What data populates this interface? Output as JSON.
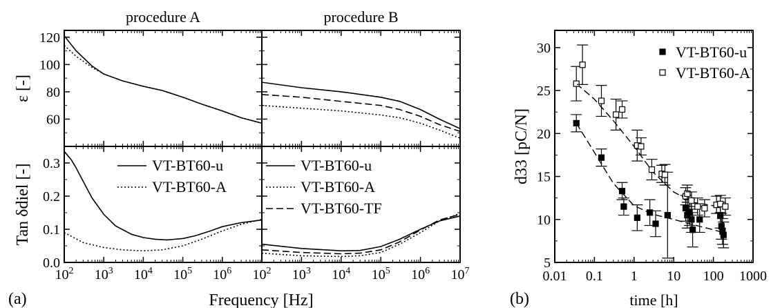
{
  "panel_labels": {
    "a": "(a)",
    "b": "(b)"
  },
  "shared_xlabel": "Frequency [Hz]",
  "chart_data": [
    {
      "id": "eps-A",
      "type": "line",
      "title": "procedure A",
      "ylabel": "ε [-]",
      "xscale": "log",
      "xlim": [
        100,
        10000000
      ],
      "ylim": [
        40,
        125
      ],
      "yticks": [
        60,
        80,
        100,
        120
      ],
      "xticks": [
        "10^2",
        "10^3",
        "10^4",
        "10^5",
        "10^6",
        "10^7"
      ],
      "series": [
        {
          "name": "VT-BT60-u",
          "style": "solid",
          "x": [
            100,
            200,
            500,
            1000,
            3000,
            10000,
            30000,
            100000,
            300000,
            1000000,
            3000000,
            10000000
          ],
          "y": [
            121,
            110,
            99,
            93,
            88,
            84,
            81,
            76,
            71,
            66,
            61,
            57
          ]
        },
        {
          "name": "VT-BT60-A",
          "style": "dotted",
          "x": [
            100,
            200,
            500,
            1000,
            3000,
            10000,
            30000,
            100000,
            300000,
            1000000,
            3000000,
            10000000
          ],
          "y": [
            114,
            106,
            98,
            93,
            88,
            84,
            81,
            76,
            71,
            66,
            61,
            57
          ]
        }
      ]
    },
    {
      "id": "eps-B",
      "type": "line",
      "title": "procedure B",
      "xscale": "log",
      "xlim": [
        100,
        10000000
      ],
      "ylim": [
        40,
        125
      ],
      "yticks": [
        60,
        80,
        100,
        120
      ],
      "xticks": [
        "10^2",
        "10^3",
        "10^4",
        "10^5",
        "10^6",
        "10^7"
      ],
      "series": [
        {
          "name": "VT-BT60-u",
          "style": "solid",
          "x": [
            100,
            1000,
            10000,
            100000,
            300000,
            1000000,
            3000000,
            10000000
          ],
          "y": [
            87,
            83,
            80,
            76,
            73,
            67,
            60,
            53
          ]
        },
        {
          "name": "VT-BT60-TF",
          "style": "dashed",
          "x": [
            100,
            1000,
            10000,
            100000,
            300000,
            1000000,
            3000000,
            10000000
          ],
          "y": [
            78,
            76,
            73,
            70,
            67,
            62,
            56,
            51
          ]
        },
        {
          "name": "VT-BT60-A",
          "style": "dotted",
          "x": [
            100,
            1000,
            10000,
            100000,
            300000,
            1000000,
            3000000,
            10000000
          ],
          "y": [
            70,
            68,
            66,
            63,
            61,
            57,
            52,
            46
          ]
        }
      ]
    },
    {
      "id": "tan-A",
      "type": "line",
      "ylabel": "Tan δdiel [-]",
      "xscale": "log",
      "xlim": [
        100,
        10000000
      ],
      "ylim": [
        0.0,
        0.35
      ],
      "yticks": [
        0.0,
        0.1,
        0.2,
        0.3
      ],
      "ytick_labels": [
        "0.0",
        "0.1",
        "0.2",
        "0.3"
      ],
      "xticks": [
        "10^2",
        "10^3",
        "10^4",
        "10^5",
        "10^6",
        "10^7"
      ],
      "legend": "upper-right",
      "series": [
        {
          "name": "VT-BT60-u",
          "style": "solid",
          "x": [
            100,
            150,
            200,
            300,
            500,
            1000,
            2000,
            5000,
            10000,
            20000,
            40000,
            100000,
            200000,
            500000,
            1000000,
            3000000,
            10000000
          ],
          "y": [
            0.335,
            0.31,
            0.285,
            0.245,
            0.195,
            0.145,
            0.11,
            0.085,
            0.075,
            0.07,
            0.068,
            0.072,
            0.08,
            0.095,
            0.108,
            0.12,
            0.128
          ]
        },
        {
          "name": "VT-BT60-A",
          "style": "dotted",
          "x": [
            100,
            300,
            1000,
            3000,
            10000,
            30000,
            100000,
            300000,
            1000000,
            3000000,
            10000000
          ],
          "y": [
            0.09,
            0.06,
            0.045,
            0.038,
            0.035,
            0.038,
            0.05,
            0.07,
            0.095,
            0.115,
            0.13
          ]
        }
      ]
    },
    {
      "id": "tan-B",
      "type": "line",
      "xscale": "log",
      "xlim": [
        100,
        10000000
      ],
      "ylim": [
        0.0,
        0.35
      ],
      "yticks": [
        0.0,
        0.1,
        0.2,
        0.3
      ],
      "xticks": [
        "10^2",
        "10^3",
        "10^4",
        "10^5",
        "10^6",
        "10^7"
      ],
      "legend": "upper-right",
      "series": [
        {
          "name": "VT-BT60-u",
          "style": "solid",
          "x": [
            100,
            1000,
            10000,
            30000,
            100000,
            300000,
            1000000,
            3000000,
            10000000
          ],
          "y": [
            0.055,
            0.042,
            0.035,
            0.036,
            0.048,
            0.07,
            0.1,
            0.125,
            0.14
          ]
        },
        {
          "name": "VT-BT60-A",
          "style": "dotted",
          "x": [
            100,
            1000,
            10000,
            30000,
            100000,
            300000,
            1000000,
            3000000,
            10000000
          ],
          "y": [
            0.028,
            0.02,
            0.018,
            0.02,
            0.03,
            0.055,
            0.09,
            0.125,
            0.148
          ]
        },
        {
          "name": "VT-BT60-TF",
          "style": "dashed",
          "x": [
            100,
            1000,
            10000,
            30000,
            100000,
            300000,
            1000000,
            3000000,
            10000000
          ],
          "y": [
            0.038,
            0.03,
            0.026,
            0.028,
            0.038,
            0.062,
            0.098,
            0.128,
            0.145
          ]
        }
      ]
    },
    {
      "id": "d33",
      "type": "scatter",
      "xlabel": "time [h]",
      "ylabel": "d33 [pC/N]",
      "xscale": "log",
      "xlim": [
        0.01,
        1000
      ],
      "ylim": [
        5,
        32
      ],
      "xticks": [
        0.01,
        0.1,
        1,
        10,
        100,
        1000
      ],
      "xtick_labels": [
        "0.01",
        "0.1",
        "1",
        "10",
        "100",
        "1000"
      ],
      "yticks": [
        5,
        10,
        15,
        20,
        25,
        30
      ],
      "legend": "top-right",
      "series": [
        {
          "name": "VT-BT60-u",
          "marker": "filled-square",
          "x": [
            0.035,
            0.15,
            0.5,
            0.55,
            1.2,
            2.5,
            3.5,
            7,
            20,
            22,
            25,
            28,
            30,
            45,
            150,
            160,
            170,
            180
          ],
          "y": [
            21.2,
            17.2,
            13.3,
            11.5,
            10.2,
            10.8,
            9.5,
            10.5,
            11.3,
            10.5,
            10.8,
            10.0,
            8.8,
            10.0,
            10.5,
            9.2,
            8.6,
            8.2
          ],
          "err": [
            1.0,
            1.0,
            1.0,
            1.0,
            1.5,
            1.5,
            1.5,
            5.0,
            1.5,
            1.5,
            1.5,
            1.5,
            2.0,
            1.5,
            1.5,
            1.5,
            1.5,
            1.5
          ]
        },
        {
          "name": "VT-BT60-A",
          "marker": "open-square",
          "x": [
            0.035,
            0.05,
            0.15,
            0.35,
            0.5,
            1.2,
            1.5,
            2.8,
            5,
            6,
            20,
            22,
            28,
            40,
            60,
            120,
            150,
            200
          ],
          "y": [
            25.8,
            28.0,
            23.8,
            22.2,
            22.8,
            18.6,
            18.5,
            15.8,
            15.3,
            15.2,
            12.7,
            13.0,
            12.2,
            11.5,
            11.3,
            11.7,
            11.8,
            11.5
          ],
          "err": [
            2.0,
            2.3,
            1.8,
            1.8,
            1.0,
            1.8,
            1.0,
            1.2,
            1.0,
            1.2,
            1.0,
            1.0,
            1.0,
            1.0,
            1.0,
            1.0,
            1.0,
            1.0
          ]
        }
      ],
      "trend_lines": [
        {
          "series": "VT-BT60-u",
          "style": "dashed",
          "x": [
            0.035,
            0.1,
            0.3,
            1,
            3,
            10,
            30,
            100,
            200
          ],
          "y": [
            21.2,
            17.8,
            14.2,
            11.6,
            10.6,
            10.0,
            9.4,
            8.8,
            8.4
          ]
        },
        {
          "name": "VT-BT60-A",
          "style": "dashed",
          "x": [
            0.035,
            0.1,
            0.3,
            1,
            3,
            10,
            30,
            100,
            200
          ],
          "y": [
            25.8,
            24.0,
            21.5,
            18.5,
            15.5,
            13.2,
            12.0,
            11.6,
            11.4
          ]
        }
      ]
    }
  ]
}
